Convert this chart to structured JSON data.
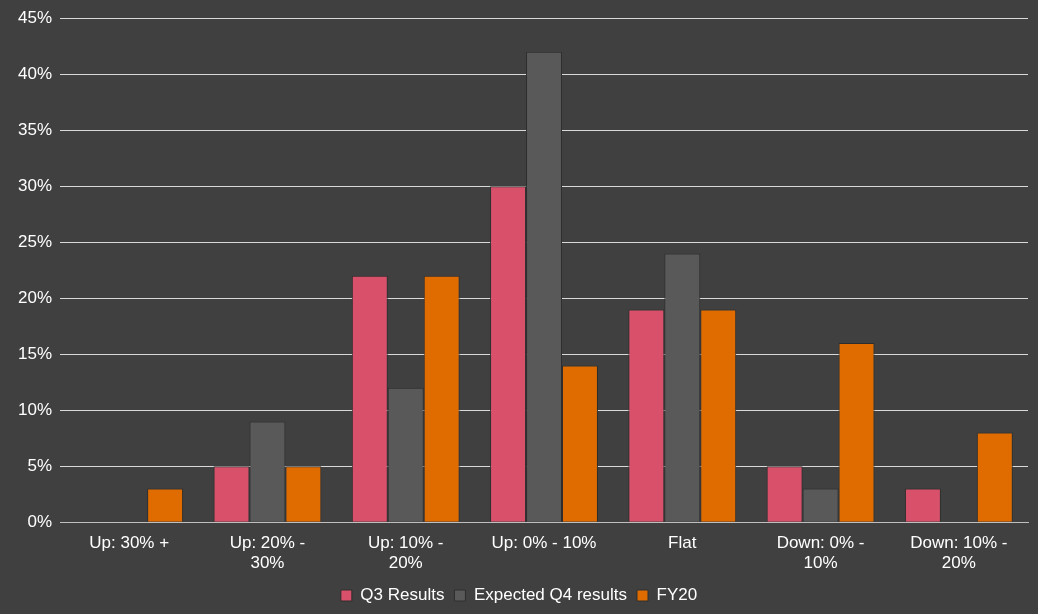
{
  "chart_data": {
    "type": "bar",
    "categories": [
      "Up: 30% +",
      "Up: 20% - 30%",
      "Up: 10% - 20%",
      "Up: 0% - 10%",
      "Flat",
      "Down: 0% - 10%",
      "Down: 10% - 20%"
    ],
    "series": [
      {
        "name": "Q3 Results",
        "color": "#d9506a",
        "values": [
          0,
          5,
          22,
          30,
          19,
          5,
          3
        ]
      },
      {
        "name": "Expected Q4 results",
        "color": "#595959",
        "values": [
          0,
          9,
          12,
          42,
          24,
          3,
          0
        ]
      },
      {
        "name": "FY20",
        "color": "#e06c00",
        "values": [
          3,
          5,
          22,
          14,
          19,
          16,
          8
        ]
      }
    ],
    "ylim": [
      0,
      45
    ],
    "yticks": [
      {
        "value": 0,
        "label": "0%"
      },
      {
        "value": 5,
        "label": "5%"
      },
      {
        "value": 10,
        "label": "10%"
      },
      {
        "value": 15,
        "label": "15%"
      },
      {
        "value": 20,
        "label": "20%"
      },
      {
        "value": 25,
        "label": "25%"
      },
      {
        "value": 30,
        "label": "30%"
      },
      {
        "value": 35,
        "label": "35%"
      },
      {
        "value": 40,
        "label": "40%"
      },
      {
        "value": 45,
        "label": "45%"
      }
    ],
    "grid": "y",
    "legend": "bottom"
  }
}
